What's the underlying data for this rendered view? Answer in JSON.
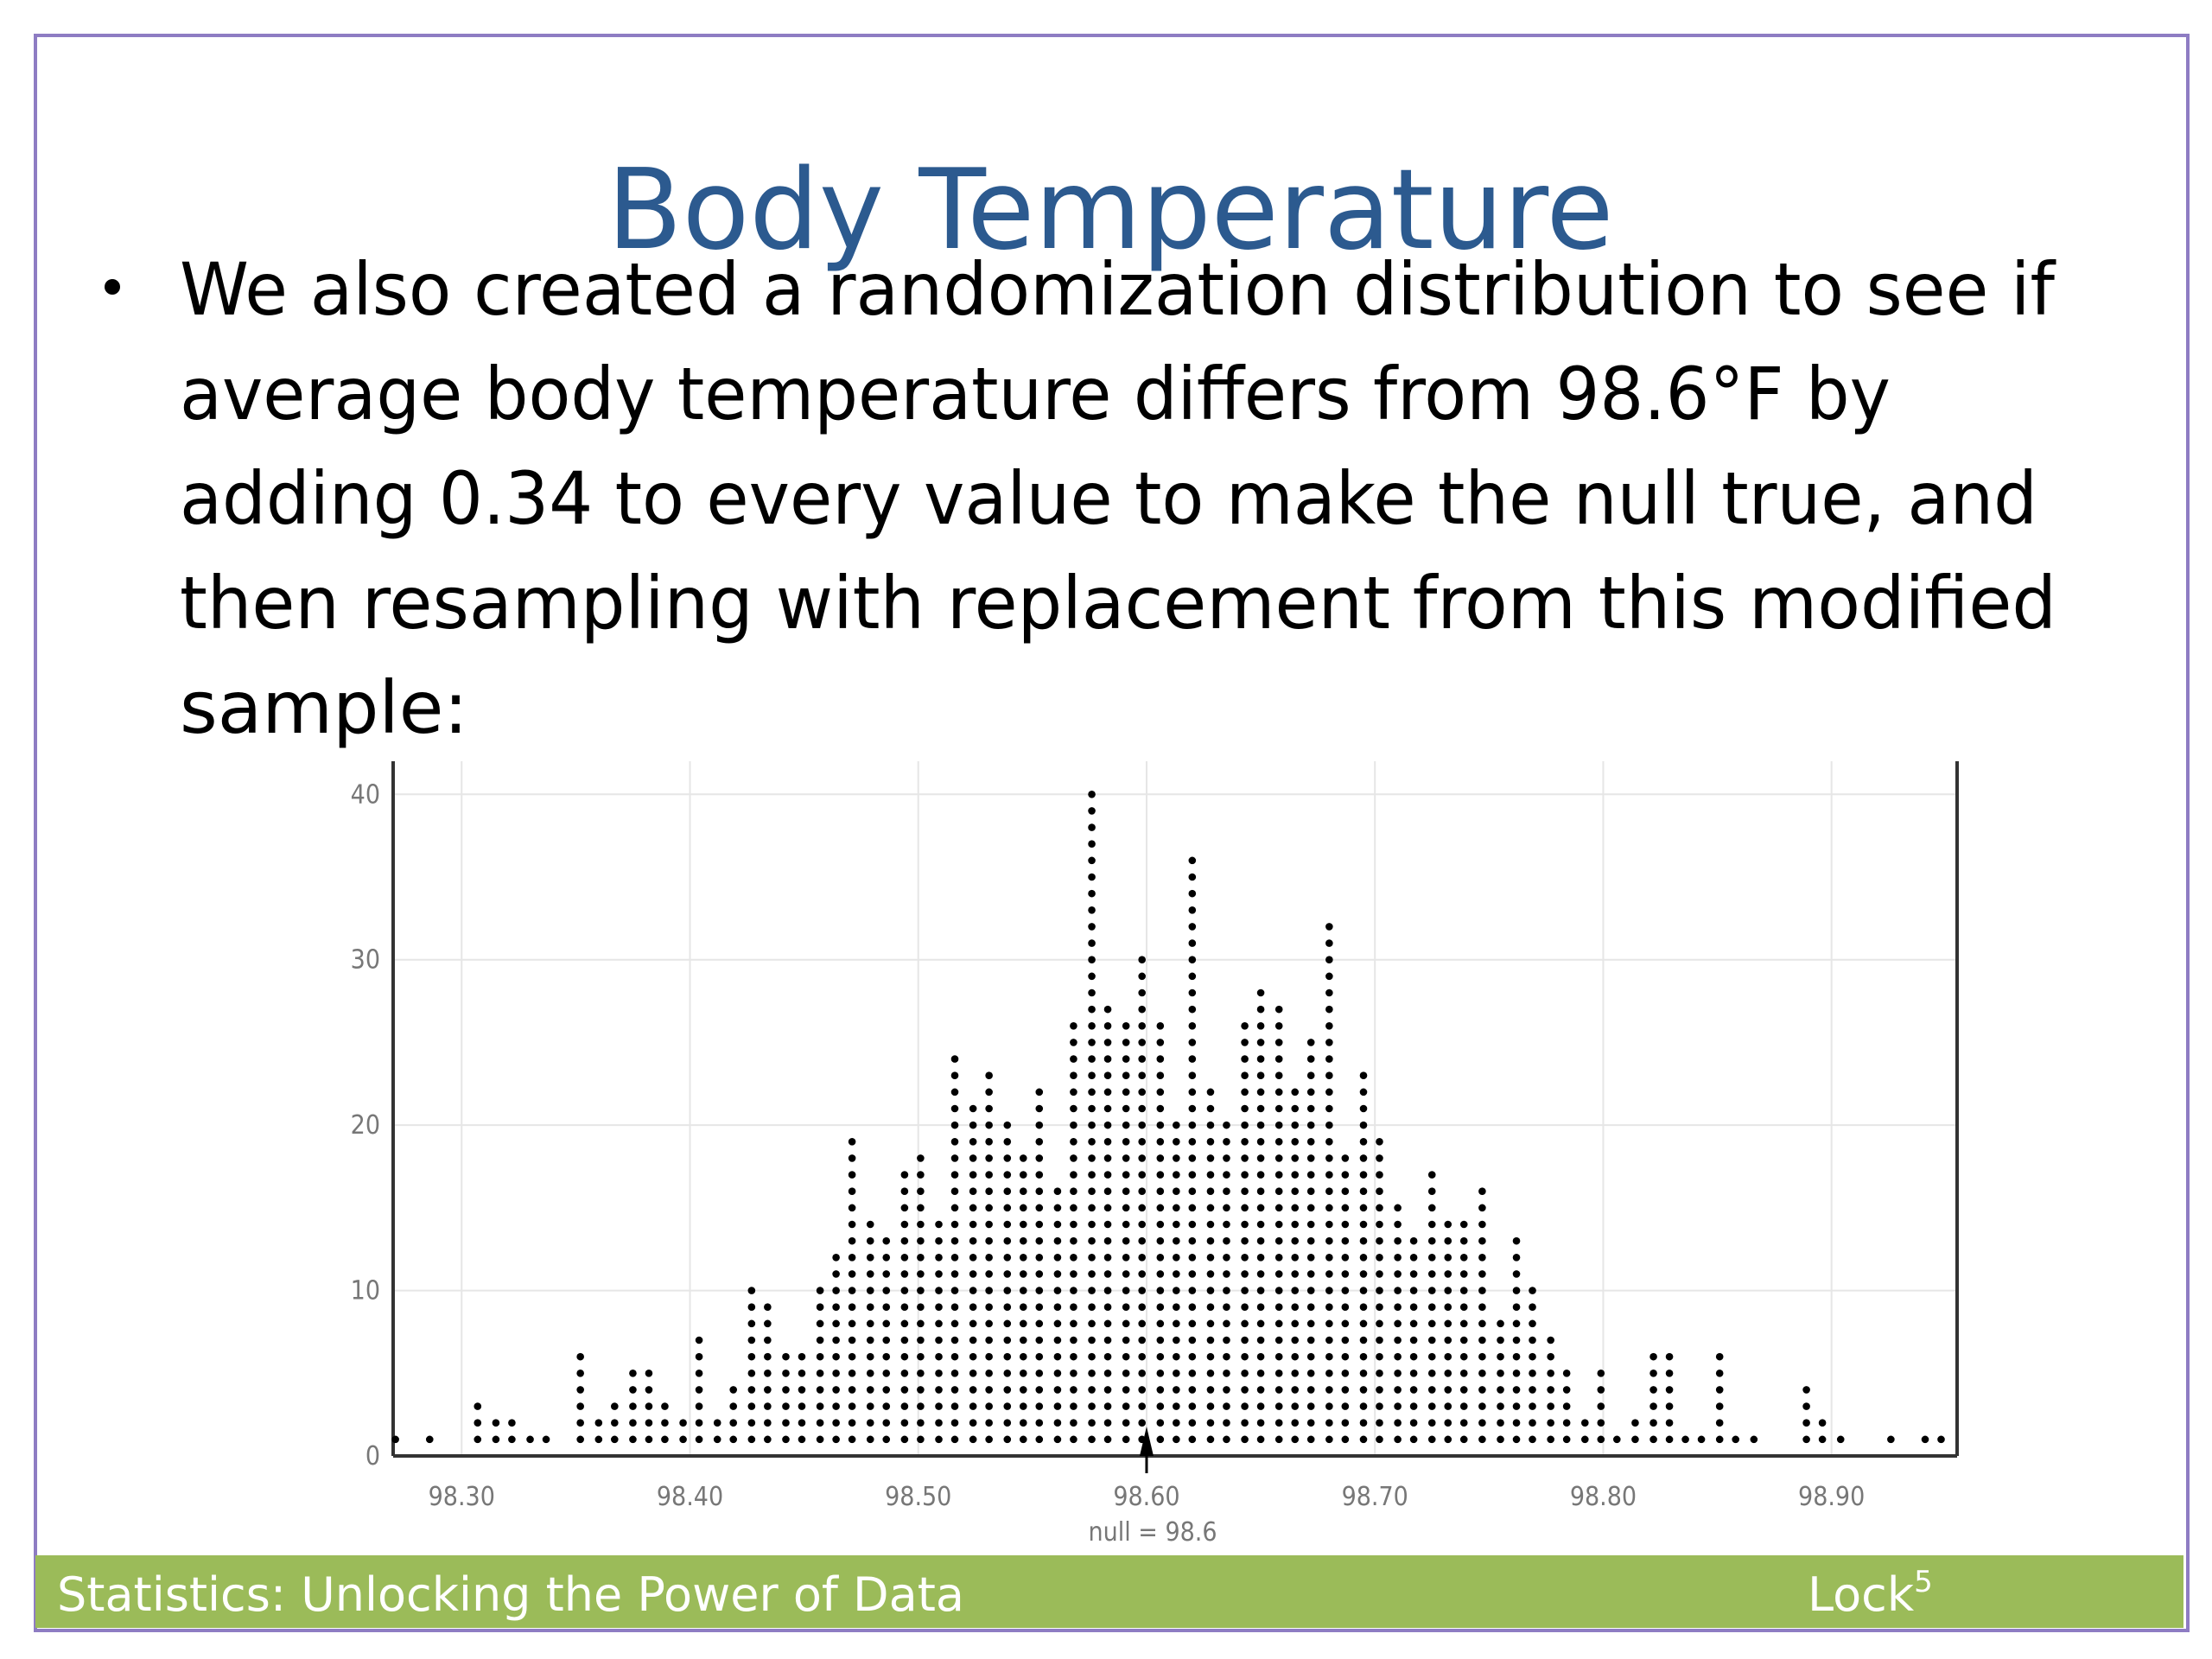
{
  "header": {
    "title": "Body Temperature"
  },
  "body": {
    "lines": [
      "We also created a randomization distribution to see if",
      "average body temperature differs from 98.6°F by",
      "adding 0.34 to every value to make the null true, and",
      "then resampling with replacement from this modified",
      "sample:"
    ]
  },
  "footer": {
    "left": "Statistics: Unlocking the Power of Data",
    "right": "Lock",
    "right_sup": "5"
  },
  "chart_data": {
    "type": "dotplot",
    "x": [
      98.271,
      98.286,
      98.307,
      98.315,
      98.322,
      98.33,
      98.337,
      98.352,
      98.36,
      98.367,
      98.375,
      98.382,
      98.389,
      98.397,
      98.404,
      98.412,
      98.419,
      98.427,
      98.434,
      98.442,
      98.449,
      98.457,
      98.464,
      98.471,
      98.479,
      98.486,
      98.494,
      98.501,
      98.509,
      98.516,
      98.524,
      98.531,
      98.539,
      98.546,
      98.553,
      98.561,
      98.568,
      98.576,
      98.583,
      98.591,
      98.598,
      98.606,
      98.613,
      98.62,
      98.628,
      98.635,
      98.643,
      98.65,
      98.658,
      98.665,
      98.672,
      98.68,
      98.687,
      98.695,
      98.702,
      98.71,
      98.717,
      98.725,
      98.732,
      98.739,
      98.747,
      98.755,
      98.762,
      98.769,
      98.777,
      98.784,
      98.792,
      98.799,
      98.806,
      98.814,
      98.822,
      98.829,
      98.836,
      98.843,
      98.851,
      98.858,
      98.866,
      98.889,
      98.896,
      98.904,
      98.926,
      98.941,
      98.948
    ],
    "values": [
      1,
      1,
      3,
      2,
      2,
      1,
      1,
      6,
      2,
      3,
      5,
      5,
      3,
      2,
      7,
      2,
      4,
      10,
      9,
      6,
      6,
      10,
      12,
      19,
      14,
      13,
      17,
      18,
      14,
      24,
      21,
      23,
      20,
      18,
      22,
      16,
      26,
      40,
      27,
      26,
      30,
      26,
      20,
      36,
      22,
      20,
      26,
      28,
      27,
      22,
      25,
      32,
      18,
      23,
      19,
      15,
      13,
      17,
      14,
      14,
      16,
      8,
      13,
      10,
      7,
      5,
      2,
      5,
      1,
      2,
      6,
      6,
      1,
      1,
      6,
      1,
      1,
      4,
      2,
      1,
      1,
      1,
      1
    ],
    "color": "#000000",
    "xlim": [
      98.27,
      98.955
    ],
    "ylim": [
      0,
      42
    ],
    "xticks": [
      {
        "value": 98.3,
        "label": "98.30"
      },
      {
        "value": 98.4,
        "label": "98.40"
      },
      {
        "value": 98.5,
        "label": "98.50"
      },
      {
        "value": 98.6,
        "label": "98.60"
      },
      {
        "value": 98.7,
        "label": "98.70"
      },
      {
        "value": 98.8,
        "label": "98.80"
      },
      {
        "value": 98.9,
        "label": "98.90"
      }
    ],
    "yticks": [
      0,
      10,
      20,
      30,
      40
    ],
    "grid": true,
    "null_value": 98.6,
    "null_label": "null = 98.6"
  }
}
